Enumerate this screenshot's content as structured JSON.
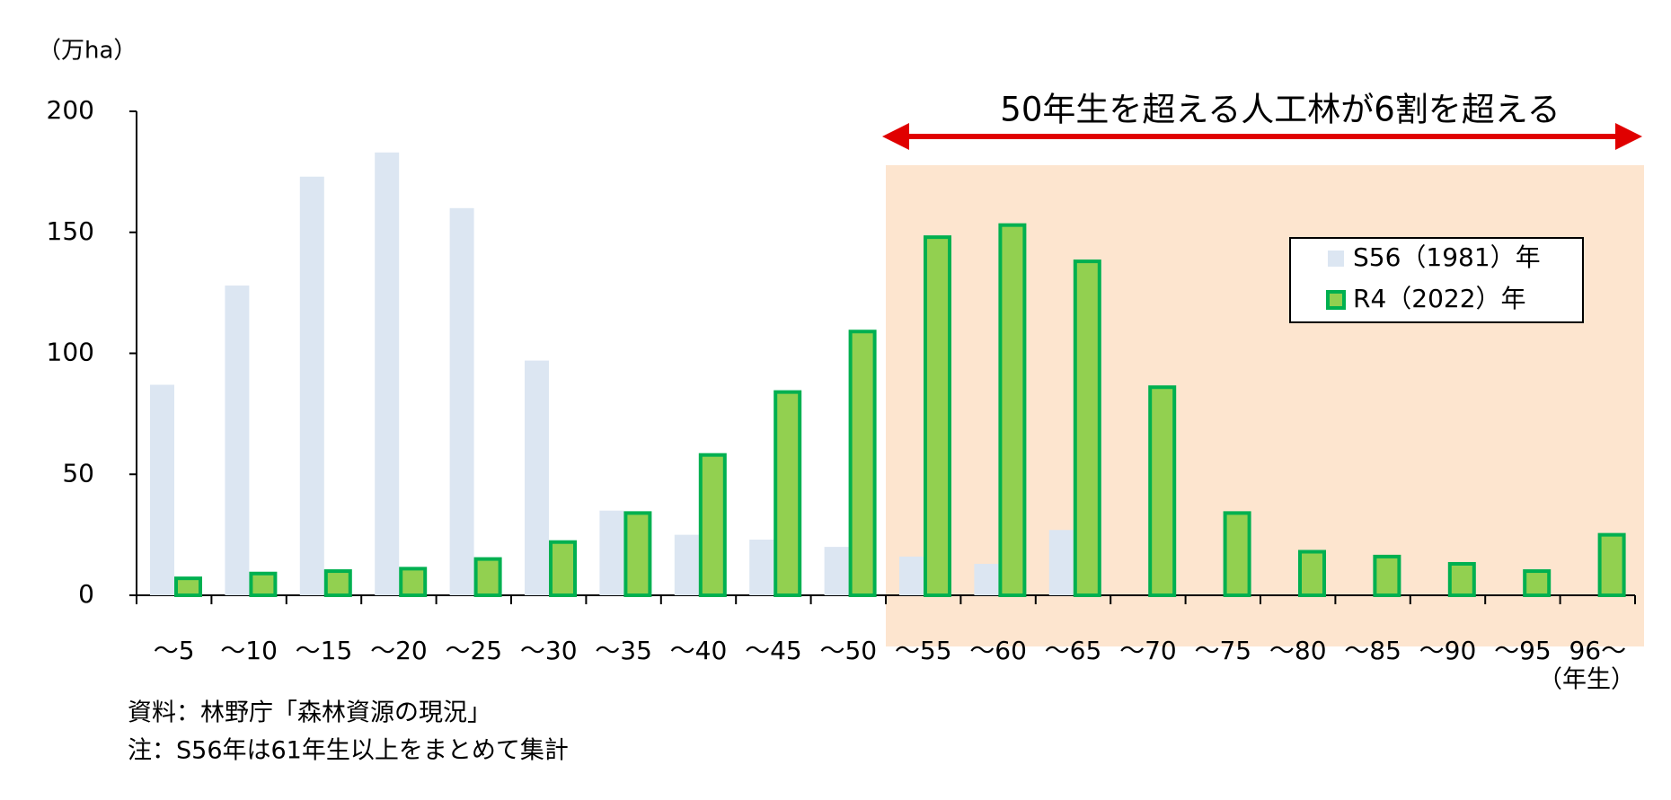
{
  "chart_data": {
    "type": "bar",
    "y_label": "（万ha）",
    "x_label": "（年生）",
    "annotation": "50年生を超える人工林が6割を超える",
    "source": "資料：林野庁「森林資源の現況」",
    "note": "注：S56年は61年生以上をまとめて集計",
    "categories": [
      "～5",
      "～10",
      "～15",
      "～20",
      "～25",
      "～30",
      "～35",
      "～40",
      "～45",
      "～50",
      "～55",
      "～60",
      "～65",
      "～70",
      "～75",
      "～80",
      "～85",
      "～90",
      "～95",
      "96～"
    ],
    "series": [
      {
        "name": "S56（1981）年",
        "color": "#dce6f2",
        "values": [
          87,
          128,
          173,
          183,
          160,
          97,
          35,
          25,
          23,
          20,
          16,
          13,
          27,
          null,
          null,
          null,
          null,
          null,
          null,
          null
        ]
      },
      {
        "name": "R4（2022）年",
        "color": "#92d050",
        "edgecolor": "#00b050",
        "values": [
          7,
          9,
          10,
          11,
          15,
          22,
          34,
          58,
          84,
          109,
          148,
          153,
          138,
          86,
          34,
          18,
          16,
          13,
          10,
          25
        ]
      }
    ],
    "ylim": [
      0,
      200
    ],
    "yticks": [
      0,
      50,
      100,
      150,
      200
    ],
    "grid": false
  }
}
